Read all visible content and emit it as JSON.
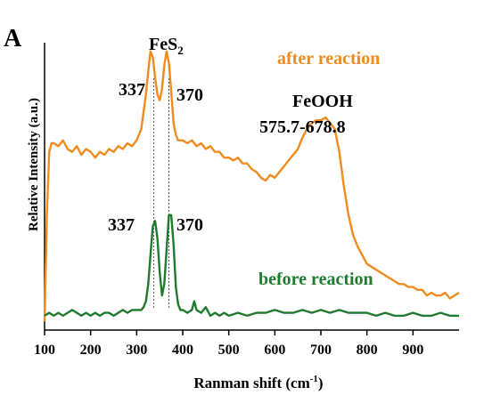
{
  "panel_label": "A",
  "chart_data": {
    "type": "line",
    "xlabel": "Ranman shift (cm",
    "xlabel_exponent": "-1",
    "xlabel_close": ")",
    "ylabel": "Relative Intensity (a.u.)",
    "xlim": [
      100,
      1000
    ],
    "ylim": [
      0,
      1
    ],
    "xticks": [
      100,
      200,
      300,
      400,
      500,
      600,
      700,
      800,
      900
    ],
    "yticks_shown": false,
    "grid": false,
    "colors": {
      "after": "#F08C1E",
      "before": "#1F7A2E",
      "guide": "#555555"
    },
    "series": [
      {
        "key": "after",
        "name": "after reaction",
        "color": "#F08C1E",
        "x": [
          100,
          105,
          110,
          115,
          120,
          130,
          140,
          150,
          160,
          170,
          180,
          190,
          200,
          210,
          220,
          230,
          240,
          250,
          260,
          270,
          280,
          290,
          300,
          310,
          315,
          320,
          325,
          330,
          335,
          340,
          345,
          350,
          355,
          360,
          365,
          370,
          375,
          380,
          385,
          390,
          400,
          410,
          420,
          430,
          440,
          450,
          460,
          470,
          480,
          490,
          500,
          510,
          520,
          530,
          540,
          550,
          560,
          570,
          580,
          590,
          600,
          610,
          620,
          630,
          640,
          650,
          660,
          670,
          680,
          690,
          700,
          710,
          720,
          730,
          740,
          750,
          760,
          770,
          780,
          790,
          800,
          810,
          820,
          830,
          840,
          850,
          860,
          870,
          880,
          890,
          900,
          910,
          920,
          930,
          940,
          950,
          960,
          970,
          980,
          990,
          1000
        ],
        "y": [
          0.03,
          0.4,
          0.62,
          0.65,
          0.65,
          0.64,
          0.66,
          0.63,
          0.62,
          0.64,
          0.61,
          0.63,
          0.62,
          0.6,
          0.62,
          0.61,
          0.63,
          0.62,
          0.64,
          0.63,
          0.65,
          0.64,
          0.66,
          0.7,
          0.76,
          0.82,
          0.9,
          0.97,
          0.95,
          0.88,
          0.82,
          0.8,
          0.84,
          0.92,
          0.97,
          0.93,
          0.83,
          0.72,
          0.68,
          0.66,
          0.66,
          0.65,
          0.66,
          0.64,
          0.65,
          0.63,
          0.64,
          0.62,
          0.62,
          0.6,
          0.6,
          0.59,
          0.6,
          0.58,
          0.58,
          0.56,
          0.55,
          0.53,
          0.52,
          0.54,
          0.53,
          0.55,
          0.57,
          0.59,
          0.61,
          0.63,
          0.67,
          0.7,
          0.72,
          0.73,
          0.73,
          0.74,
          0.72,
          0.7,
          0.62,
          0.5,
          0.4,
          0.33,
          0.29,
          0.26,
          0.23,
          0.22,
          0.21,
          0.2,
          0.19,
          0.18,
          0.17,
          0.16,
          0.16,
          0.15,
          0.15,
          0.14,
          0.14,
          0.12,
          0.13,
          0.12,
          0.12,
          0.13,
          0.11,
          0.12,
          0.13
        ]
      },
      {
        "key": "before",
        "name": "before reaction",
        "color": "#1F7A2E",
        "x": [
          100,
          110,
          120,
          130,
          140,
          150,
          160,
          170,
          180,
          190,
          200,
          210,
          220,
          230,
          240,
          250,
          260,
          270,
          280,
          290,
          300,
          310,
          315,
          320,
          325,
          330,
          335,
          340,
          345,
          350,
          355,
          360,
          365,
          370,
          375,
          380,
          385,
          390,
          395,
          400,
          410,
          420,
          425,
          430,
          440,
          450,
          460,
          470,
          480,
          490,
          500,
          520,
          540,
          560,
          580,
          600,
          620,
          640,
          660,
          680,
          700,
          720,
          740,
          760,
          780,
          800,
          820,
          840,
          860,
          880,
          900,
          920,
          940,
          960,
          980,
          1000
        ],
        "y": [
          0.05,
          0.06,
          0.05,
          0.06,
          0.05,
          0.06,
          0.07,
          0.06,
          0.05,
          0.06,
          0.05,
          0.06,
          0.05,
          0.06,
          0.06,
          0.05,
          0.06,
          0.07,
          0.06,
          0.07,
          0.07,
          0.07,
          0.08,
          0.1,
          0.16,
          0.26,
          0.36,
          0.38,
          0.32,
          0.2,
          0.12,
          0.16,
          0.28,
          0.4,
          0.4,
          0.3,
          0.15,
          0.09,
          0.07,
          0.07,
          0.06,
          0.07,
          0.1,
          0.07,
          0.06,
          0.08,
          0.05,
          0.06,
          0.05,
          0.06,
          0.05,
          0.06,
          0.05,
          0.06,
          0.06,
          0.07,
          0.06,
          0.06,
          0.07,
          0.06,
          0.07,
          0.06,
          0.07,
          0.06,
          0.06,
          0.06,
          0.05,
          0.06,
          0.05,
          0.05,
          0.06,
          0.05,
          0.05,
          0.06,
          0.05,
          0.05
        ]
      }
    ],
    "guides_x": [
      337,
      370
    ],
    "annotations": {
      "fes2_main": "FeS",
      "fes2_sub": "2",
      "after_peak_1": "337",
      "after_peak_2": "370",
      "before_peak_1": "337",
      "before_peak_2": "370",
      "feooh_title": "FeOOH",
      "feooh_range": "575.7-678.8"
    }
  }
}
